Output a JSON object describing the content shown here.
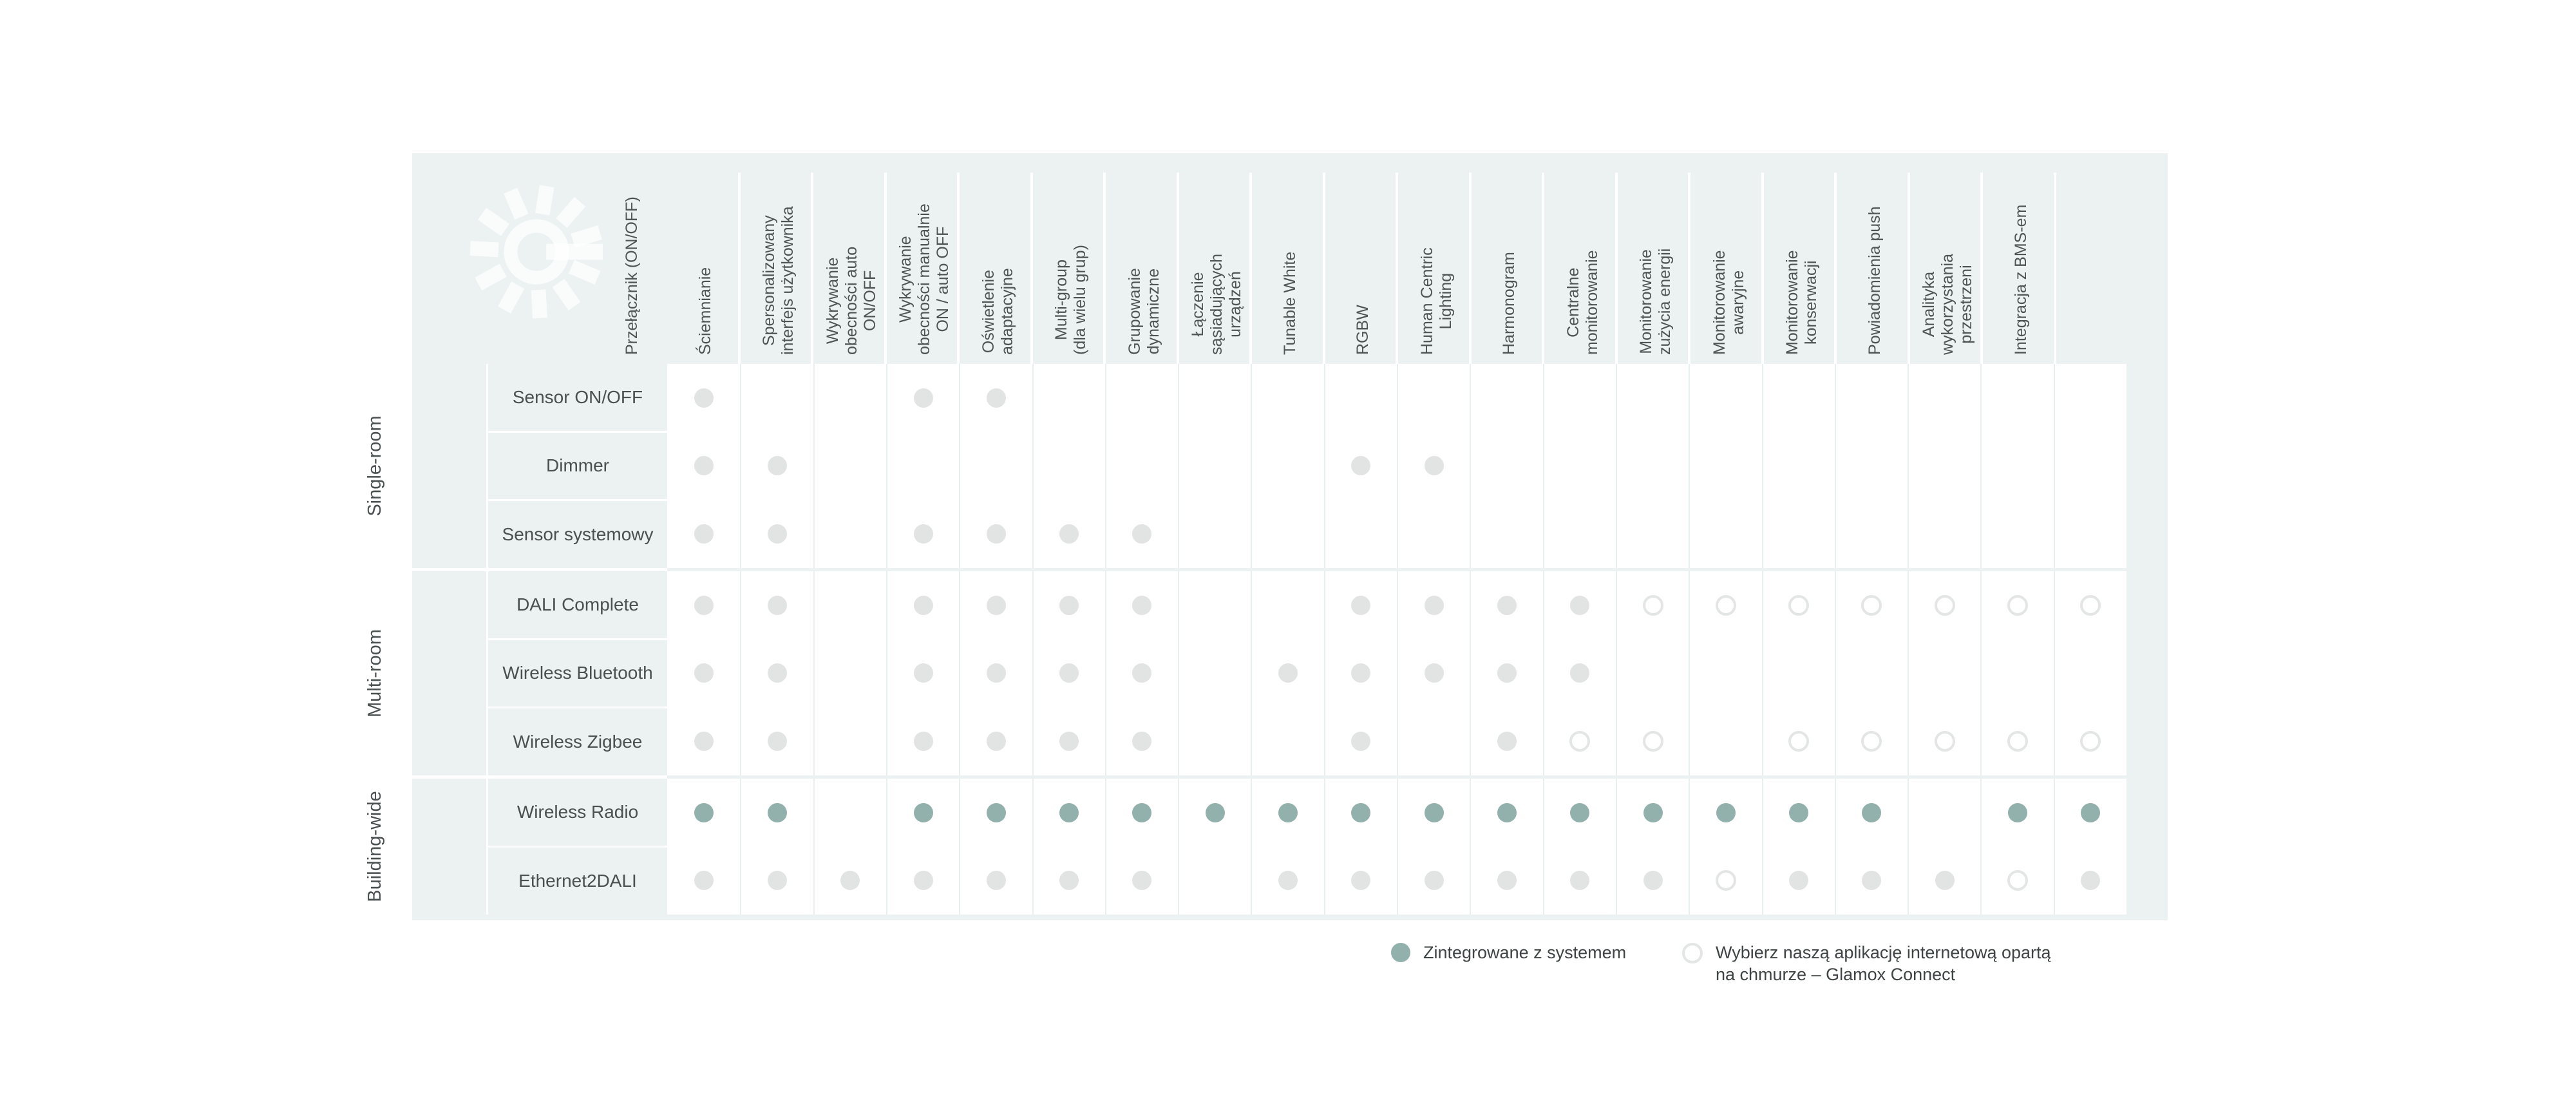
{
  "legend": {
    "integrated_label": "Zintegrowane z systemem",
    "cloud_label": "Wybierz naszą aplikację internetową opartą\nna chmurze – Glamox Connect"
  },
  "colors": {
    "panel_background": "#ecf2f1",
    "teal_dot": "#92b1ad",
    "gray_dot": "#e2e3e3",
    "outline_dot_border": "#e3e6e5",
    "cell_divider": "#e9efee",
    "text": "#4a4f4f"
  },
  "chart_data": {
    "type": "table",
    "title": "",
    "symbols": {
      "g": "gray-filled-dot",
      "o": "outlined-circle",
      "t": "teal-filled-dot",
      "": "empty"
    },
    "legend": [
      {
        "symbol": "teal-filled-dot",
        "label": "Zintegrowane z systemem"
      },
      {
        "symbol": "outlined-circle",
        "label": "Wybierz naszą aplikację internetową opartą na chmurze – Glamox Connect"
      }
    ],
    "columns": [
      {
        "label": "Przełącznik (ON/OFF)"
      },
      {
        "label": "Ściemnianie"
      },
      {
        "label": "Spersonalizowany\ninterfejs użytkownika"
      },
      {
        "label": "Wykrywanie\nobecności auto\nON/OFF"
      },
      {
        "label": "Wykrywanie\nobecności manualnie\nON / auto OFF"
      },
      {
        "label": "Oświetlenie\nadaptacyjne"
      },
      {
        "label": "Multi-group\n(dla wielu grup)"
      },
      {
        "label": "Grupowanie\ndynamiczne"
      },
      {
        "label": "Łączenie\nsąsiadujących\nurządzeń"
      },
      {
        "label": "Tunable White"
      },
      {
        "label": "RGBW"
      },
      {
        "label": "Human Centric\nLighting"
      },
      {
        "label": "Harmonogram"
      },
      {
        "label": "Centralne\nmonitorowanie"
      },
      {
        "label": "Monitorowanie\nzużycia energii"
      },
      {
        "label": "Monitorowanie\nawaryjne"
      },
      {
        "label": "Monitorowanie\nkonserwacji"
      },
      {
        "label": "Powiadomienia push"
      },
      {
        "label": "Analityka\nwykorzystania\nprzestrzeni"
      },
      {
        "label": "Integracja z BMS-em"
      }
    ],
    "groups": [
      {
        "label": "Single-room",
        "rows": [
          {
            "label": "Sensor ON/OFF",
            "cells": [
              "g",
              "",
              "",
              "g",
              "g",
              "",
              "",
              "",
              "",
              "",
              "",
              "",
              "",
              "",
              "",
              "",
              "",
              "",
              "",
              ""
            ]
          },
          {
            "label": "Dimmer",
            "cells": [
              "g",
              "g",
              "",
              "",
              "",
              "",
              "",
              "",
              "",
              "g",
              "g",
              "",
              "",
              "",
              "",
              "",
              "",
              "",
              "",
              ""
            ]
          },
          {
            "label": "Sensor systemowy",
            "cells": [
              "g",
              "g",
              "",
              "g",
              "g",
              "g",
              "g",
              "",
              "",
              "",
              "",
              "",
              "",
              "",
              "",
              "",
              "",
              "",
              "",
              ""
            ]
          }
        ]
      },
      {
        "label": "Multi-room",
        "rows": [
          {
            "label": "DALI Complete",
            "cells": [
              "g",
              "g",
              "",
              "g",
              "g",
              "g",
              "g",
              "",
              "",
              "g",
              "g",
              "g",
              "g",
              "o",
              "o",
              "o",
              "o",
              "o",
              "o",
              "o"
            ]
          },
          {
            "label": "Wireless Bluetooth",
            "cells": [
              "g",
              "g",
              "",
              "g",
              "g",
              "g",
              "g",
              "",
              "g",
              "g",
              "g",
              "g",
              "g",
              "",
              "",
              "",
              "",
              "",
              "",
              ""
            ]
          },
          {
            "label": "Wireless Zigbee",
            "cells": [
              "g",
              "g",
              "",
              "g",
              "g",
              "g",
              "g",
              "",
              "",
              "g",
              "",
              "g",
              "o",
              "o",
              "",
              "o",
              "o",
              "o",
              "o",
              "o"
            ]
          }
        ]
      },
      {
        "label": "Building-wide",
        "rows": [
          {
            "label": "Wireless Radio",
            "cells": [
              "t",
              "t",
              "",
              "t",
              "t",
              "t",
              "t",
              "t",
              "t",
              "t",
              "t",
              "t",
              "t",
              "t",
              "t",
              "t",
              "t",
              "",
              "t",
              "t"
            ]
          },
          {
            "label": "Ethernet2DALI",
            "cells": [
              "g",
              "g",
              "g",
              "g",
              "g",
              "g",
              "g",
              "",
              "g",
              "g",
              "g",
              "g",
              "g",
              "g",
              "o",
              "g",
              "g",
              "g",
              "o",
              "g"
            ]
          }
        ]
      }
    ]
  }
}
